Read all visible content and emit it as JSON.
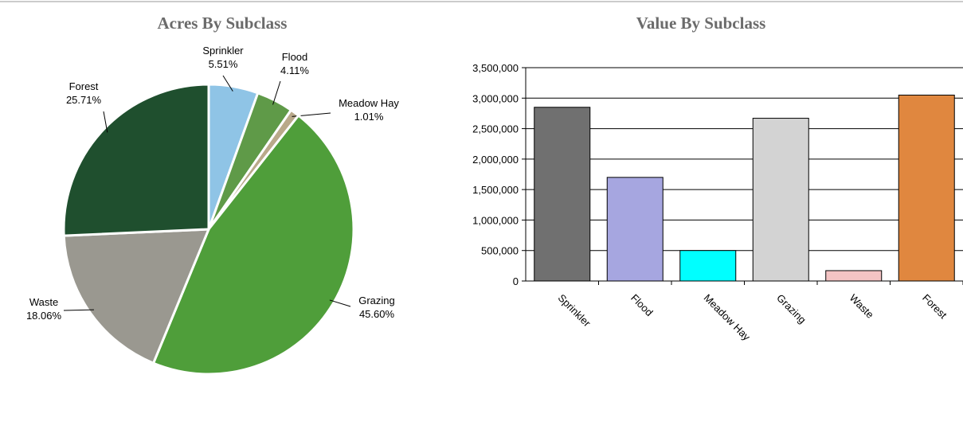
{
  "chart_data": [
    {
      "type": "pie",
      "title": "Acres By Subclass",
      "categories": [
        "Sprinkler",
        "Flood",
        "Meadow Hay",
        "Grazing",
        "Waste",
        "Forest"
      ],
      "values": [
        5.51,
        4.11,
        1.01,
        45.6,
        18.06,
        25.71
      ],
      "value_labels": [
        "5.51%",
        "4.11%",
        "1.01%",
        "45.60%",
        "18.06%",
        "25.71%"
      ],
      "colors": [
        "#8fc4e6",
        "#5f9a48",
        "#b9a98a",
        "#4f9e3a",
        "#9a9890",
        "#1f4f2e"
      ]
    },
    {
      "type": "bar",
      "title": "Value By Subclass",
      "categories": [
        "Sprinkler",
        "Flood",
        "Meadow Hay",
        "Grazing",
        "Waste",
        "Forest"
      ],
      "values": [
        2850000,
        1700000,
        500000,
        2670000,
        170000,
        3050000
      ],
      "colors": [
        "#707070",
        "#a6a6e0",
        "#00ffff",
        "#d3d3d3",
        "#f4c4c4",
        "#e0873f"
      ],
      "ylim": [
        0,
        3500000
      ],
      "yticks": [
        0,
        {
          "value": 500000,
          "label": "500,000"
        },
        {
          "value": 1000000,
          "label": "1,000,000"
        },
        {
          "value": 1500000,
          "label": "1,500,000"
        },
        {
          "value": 2000000,
          "label": "2,000,000"
        },
        {
          "value": 2500000,
          "label": "2,500,000"
        },
        {
          "value": 3000000,
          "label": "3,000,000"
        },
        {
          "value": 3500000,
          "label": "3,500,000"
        }
      ],
      "grid": true
    }
  ]
}
